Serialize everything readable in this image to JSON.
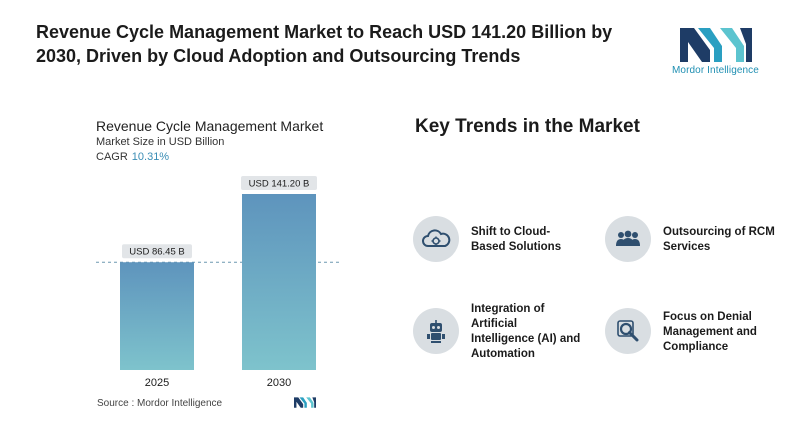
{
  "headline": "Revenue Cycle Management Market to Reach USD 141.20 Billion by 2030, Driven by Cloud Adoption and Outsourcing Trends",
  "logo": {
    "text": "Mordor Intelligence",
    "icon": "mordor-intelligence-logo"
  },
  "chart": {
    "title": "Revenue Cycle Management Market",
    "subtitle": "Market Size in USD Billion",
    "cagr_label": "CAGR",
    "cagr_value": "10.31%"
  },
  "chart_data": {
    "type": "bar",
    "categories": [
      "2025",
      "2030"
    ],
    "values": [
      86.45,
      141.2
    ],
    "data_labels": [
      "USD 86.45 B",
      "USD 141.20 B"
    ],
    "title": "Revenue Cycle Management Market",
    "ylabel": "Market Size in USD Billion",
    "ylim": [
      0,
      141.2
    ],
    "grid": false,
    "reference_line": 86.45,
    "colors": {
      "bar_top": "#5e94bd",
      "bar_bottom": "#7ec3cc",
      "label_bg": "#e2e5e8",
      "reference": "#6d98b0"
    }
  },
  "source": {
    "label": "Source :",
    "value": "Mordor Intelligence"
  },
  "trends": {
    "title": "Key Trends in the Market",
    "items": [
      {
        "label_lines": [
          "Shift to Cloud-",
          "Based Solutions"
        ],
        "icon": "cloud-icon"
      },
      {
        "label_lines": [
          "Outsourcing of RCM",
          "Services"
        ],
        "icon": "team-icon"
      },
      {
        "label_lines": [
          "Integration of",
          "Artificial",
          "Intelligence (AI) and",
          "Automation"
        ],
        "icon": "robot-icon"
      },
      {
        "label_lines": [
          "Focus on Denial",
          "Management and",
          "Compliance"
        ],
        "icon": "magnifier-icon"
      }
    ]
  }
}
